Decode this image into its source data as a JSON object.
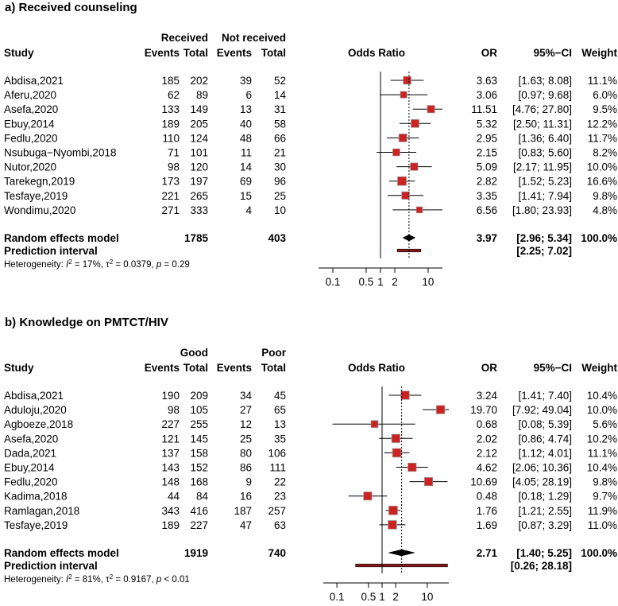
{
  "chart_data": [
    {
      "type": "forest",
      "title": "a)   Received counseling",
      "group_headers": {
        "exp": "Received",
        "ctl": "Not received"
      },
      "col_headers": {
        "study": "Study",
        "exp_events": "Events",
        "exp_total": "Total",
        "ctl_events": "Events",
        "ctl_total": "Total",
        "plot": "Odds Ratio",
        "or": "OR",
        "ci": "95%−CI",
        "weight": "Weight"
      },
      "studies": [
        {
          "name": "Abdisa,2021",
          "exp_events": "185",
          "exp_total": "202",
          "ctl_events": "39",
          "ctl_total": "52",
          "or": 3.63,
          "lo": 1.63,
          "hi": 8.08,
          "or_text": "3.63",
          "ci_text": "[1.63;  8.08]",
          "weight": "11.1%",
          "w": 11.1
        },
        {
          "name": "Aferu,2020",
          "exp_events": "62",
          "exp_total": "89",
          "ctl_events": "6",
          "ctl_total": "14",
          "or": 3.06,
          "lo": 0.97,
          "hi": 9.68,
          "or_text": "3.06",
          "ci_text": "[0.97;  9.68]",
          "weight": "6.0%",
          "w": 6.0
        },
        {
          "name": "Asefa,2020",
          "exp_events": "133",
          "exp_total": "149",
          "ctl_events": "13",
          "ctl_total": "31",
          "or": 11.51,
          "lo": 4.76,
          "hi": 27.8,
          "or_text": "11.51",
          "ci_text": "[4.76; 27.80]",
          "weight": "9.5%",
          "w": 9.5
        },
        {
          "name": "Ebuy,2014",
          "exp_events": "189",
          "exp_total": "205",
          "ctl_events": "40",
          "ctl_total": "58",
          "or": 5.32,
          "lo": 2.5,
          "hi": 11.31,
          "or_text": "5.32",
          "ci_text": "[2.50; 11.31]",
          "weight": "12.2%",
          "w": 12.2
        },
        {
          "name": "Fedlu,2020",
          "exp_events": "110",
          "exp_total": "124",
          "ctl_events": "48",
          "ctl_total": "66",
          "or": 2.95,
          "lo": 1.36,
          "hi": 6.4,
          "or_text": "2.95",
          "ci_text": "[1.36;  6.40]",
          "weight": "11.7%",
          "w": 11.7
        },
        {
          "name": "Nsubuga−Nyombi,2018",
          "exp_events": "71",
          "exp_total": "101",
          "ctl_events": "11",
          "ctl_total": "21",
          "or": 2.15,
          "lo": 0.83,
          "hi": 5.6,
          "or_text": "2.15",
          "ci_text": "[0.83;  5.60]",
          "weight": "8.2%",
          "w": 8.2
        },
        {
          "name": "Nutor,2020",
          "exp_events": "98",
          "exp_total": "120",
          "ctl_events": "14",
          "ctl_total": "30",
          "or": 5.09,
          "lo": 2.17,
          "hi": 11.95,
          "or_text": "5.09",
          "ci_text": "[2.17; 11.95]",
          "weight": "10.0%",
          "w": 10.0
        },
        {
          "name": "Tarekegn,2019",
          "exp_events": "173",
          "exp_total": "197",
          "ctl_events": "69",
          "ctl_total": "96",
          "or": 2.82,
          "lo": 1.52,
          "hi": 5.23,
          "or_text": "2.82",
          "ci_text": "[1.52;  5.23]",
          "weight": "16.6%",
          "w": 16.6
        },
        {
          "name": "Tesfaye,2019",
          "exp_events": "221",
          "exp_total": "265",
          "ctl_events": "15",
          "ctl_total": "25",
          "or": 3.35,
          "lo": 1.41,
          "hi": 7.94,
          "or_text": "3.35",
          "ci_text": "[1.41;  7.94]",
          "weight": "9.8%",
          "w": 9.8
        },
        {
          "name": "Wondimu,2020",
          "exp_events": "271",
          "exp_total": "333",
          "ctl_events": "4",
          "ctl_total": "10",
          "or": 6.56,
          "lo": 1.8,
          "hi": 23.93,
          "or_text": "6.56",
          "ci_text": "[1.80; 23.93]",
          "weight": "4.8%",
          "w": 4.8
        }
      ],
      "pooled": {
        "label": "Random effects model",
        "exp_total": "1785",
        "ctl_total": "403",
        "or": 3.97,
        "lo": 2.96,
        "hi": 5.34,
        "or_text": "3.97",
        "ci_text": "[2.96;  5.34]",
        "weight": "100.0%"
      },
      "prediction": {
        "label": "Prediction interval",
        "lo": 2.25,
        "hi": 7.02,
        "ci_text": "[2.25;  7.02]"
      },
      "heterogeneity": {
        "prefix": "Heterogeneity: ",
        "i2": "17%",
        "tau2": "0.0379",
        "p": "= 0.29"
      },
      "x_scale": "log",
      "xlim": [
        0.05,
        20
      ],
      "ticks": [
        0.1,
        0.5,
        1,
        2,
        10
      ],
      "tick_labels": [
        "0.1",
        "0.5",
        "1",
        "2",
        "10"
      ]
    },
    {
      "type": "forest",
      "title": "b)   Knowledge on PMTCT/HIV",
      "group_headers": {
        "exp": "Good",
        "ctl": "Poor"
      },
      "col_headers": {
        "study": "Study",
        "exp_events": "Events",
        "exp_total": "Total",
        "ctl_events": "Events",
        "ctl_total": "Total",
        "plot": "Odds Ratio",
        "or": "OR",
        "ci": "95%−CI",
        "weight": "Weight"
      },
      "studies": [
        {
          "name": "Abdisa,2021",
          "exp_events": "190",
          "exp_total": "209",
          "ctl_events": "34",
          "ctl_total": "45",
          "or": 3.24,
          "lo": 1.41,
          "hi": 7.4,
          "or_text": "3.24",
          "ci_text": "[1.41;  7.40]",
          "weight": "10.4%",
          "w": 10.4
        },
        {
          "name": "Aduloju,2020",
          "exp_events": "98",
          "exp_total": "105",
          "ctl_events": "27",
          "ctl_total": "65",
          "or": 19.7,
          "lo": 7.92,
          "hi": 49.04,
          "or_text": "19.70",
          "ci_text": "[7.92; 49.04]",
          "weight": "10.0%",
          "w": 10.0
        },
        {
          "name": "Agboeze,2018",
          "exp_events": "227",
          "exp_total": "255",
          "ctl_events": "12",
          "ctl_total": "13",
          "or": 0.68,
          "lo": 0.08,
          "hi": 5.39,
          "or_text": "0.68",
          "ci_text": "[0.08;  5.39]",
          "weight": "5.6%",
          "w": 5.6
        },
        {
          "name": "Asefa,2020",
          "exp_events": "121",
          "exp_total": "145",
          "ctl_events": "25",
          "ctl_total": "35",
          "or": 2.02,
          "lo": 0.86,
          "hi": 4.74,
          "or_text": "2.02",
          "ci_text": "[0.86;  4.74]",
          "weight": "10.2%",
          "w": 10.2
        },
        {
          "name": "Dada,2021",
          "exp_events": "137",
          "exp_total": "158",
          "ctl_events": "80",
          "ctl_total": "106",
          "or": 2.12,
          "lo": 1.12,
          "hi": 4.01,
          "or_text": "2.12",
          "ci_text": "[1.12;  4.01]",
          "weight": "11.1%",
          "w": 11.1
        },
        {
          "name": "Ebuy,2014",
          "exp_events": "143",
          "exp_total": "152",
          "ctl_events": "86",
          "ctl_total": "111",
          "or": 4.62,
          "lo": 2.06,
          "hi": 10.36,
          "or_text": "4.62",
          "ci_text": "[2.06; 10.36]",
          "weight": "10.4%",
          "w": 10.4
        },
        {
          "name": "Fedlu,2020",
          "exp_events": "148",
          "exp_total": "168",
          "ctl_events": "9",
          "ctl_total": "22",
          "or": 10.69,
          "lo": 4.05,
          "hi": 28.19,
          "or_text": "10.69",
          "ci_text": "[4.05; 28.19]",
          "weight": "9.8%",
          "w": 9.8
        },
        {
          "name": "Kadima,2018",
          "exp_events": "44",
          "exp_total": "84",
          "ctl_events": "16",
          "ctl_total": "23",
          "or": 0.48,
          "lo": 0.18,
          "hi": 1.29,
          "or_text": "0.48",
          "ci_text": "[0.18;  1.29]",
          "weight": "9.7%",
          "w": 9.7
        },
        {
          "name": "Ramlagan,2018",
          "exp_events": "343",
          "exp_total": "416",
          "ctl_events": "187",
          "ctl_total": "257",
          "or": 1.76,
          "lo": 1.21,
          "hi": 2.55,
          "or_text": "1.76",
          "ci_text": "[1.21;  2.55]",
          "weight": "11.9%",
          "w": 11.9
        },
        {
          "name": "Tesfaye,2019",
          "exp_events": "189",
          "exp_total": "227",
          "ctl_events": "47",
          "ctl_total": "63",
          "or": 1.69,
          "lo": 0.87,
          "hi": 3.29,
          "or_text": "1.69",
          "ci_text": "[0.87;  3.29]",
          "weight": "11.0%",
          "w": 11.0
        }
      ],
      "pooled": {
        "label": "Random effects model",
        "exp_total": "1919",
        "ctl_total": "740",
        "or": 2.71,
        "lo": 1.4,
        "hi": 5.25,
        "or_text": "2.71",
        "ci_text": "[1.40;  5.25]",
        "weight": "100.0%"
      },
      "prediction": {
        "label": "Prediction interval",
        "lo": 0.26,
        "hi": 28.18,
        "ci_text": "[0.26; 28.18]"
      },
      "heterogeneity": {
        "prefix": "Heterogeneity: ",
        "i2": "81%",
        "tau2": "0.9167",
        "p": "< 0.01"
      },
      "x_scale": "log",
      "xlim": [
        0.05,
        30
      ],
      "ticks": [
        0.1,
        0.5,
        1,
        2,
        10
      ],
      "tick_labels": [
        "0.1",
        "0.5",
        "1",
        "2",
        "10"
      ]
    }
  ],
  "colors": {
    "marker": "#cc2222",
    "marker_edge": "#999999",
    "pooled": "#000000",
    "prediction": "#8b1a1a",
    "axis": "#000000"
  }
}
